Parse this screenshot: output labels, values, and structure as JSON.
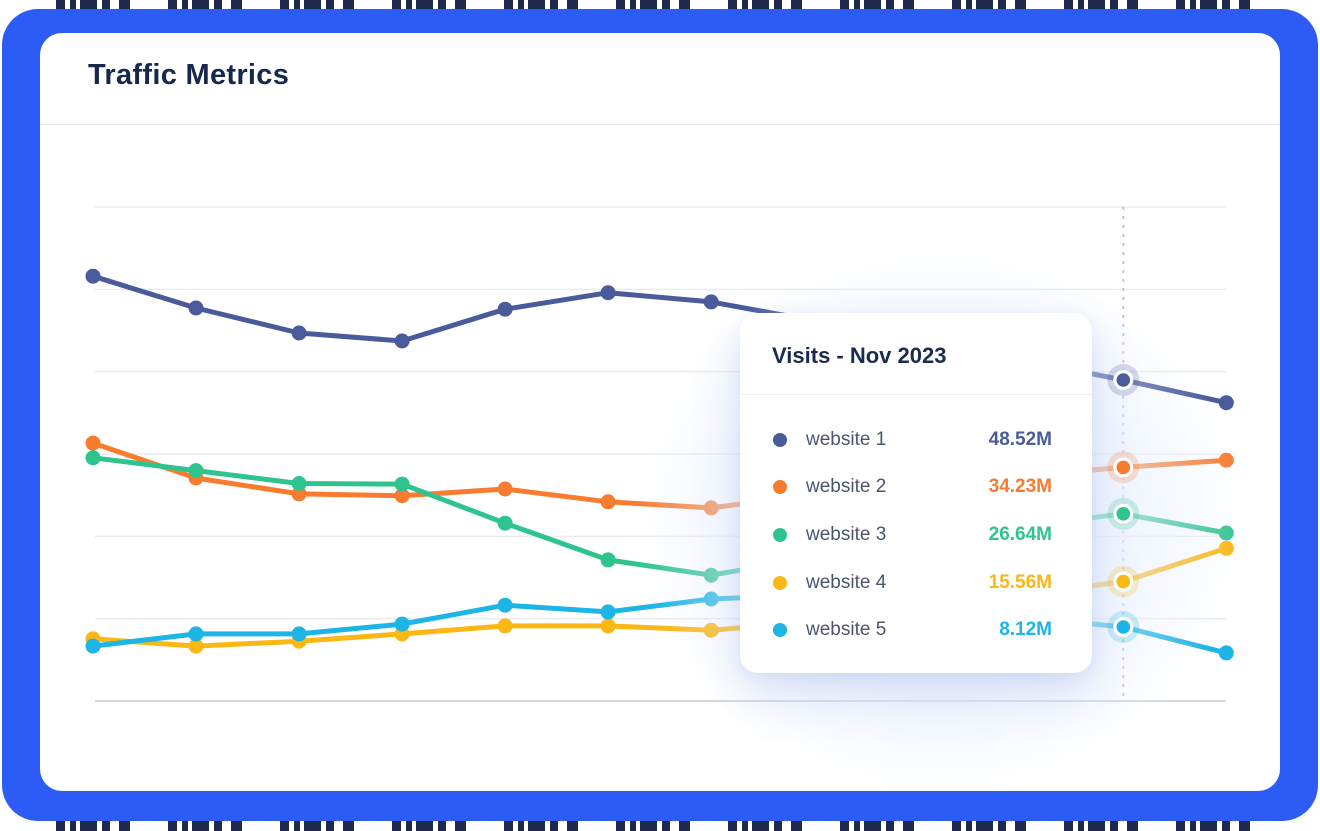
{
  "card": {
    "title": "Traffic Metrics"
  },
  "tooltip": {
    "title": "Visits - Nov 2023",
    "rows": [
      {
        "label": "website 1",
        "value": "48.52M"
      },
      {
        "label": "website 2",
        "value": "34.23M"
      },
      {
        "label": "website 3",
        "value": "26.64M"
      },
      {
        "label": "website 4",
        "value": "15.56M"
      },
      {
        "label": "website 5",
        "value": "8.12M"
      }
    ]
  },
  "chart_data": {
    "type": "line",
    "title": "Traffic Metrics",
    "metric": "Visits",
    "unit": "M",
    "x_count": 12,
    "highlighted_point_index": 10,
    "highlighted_point_label": "Nov 2023",
    "ylim": [
      0,
      80
    ],
    "grid": true,
    "axis_labels_visible": false,
    "legend_position": "tooltip",
    "series": [
      {
        "name": "website 1",
        "color": "#4A5B9B",
        "values": [
          65.5,
          60.3,
          56.2,
          54.9,
          60.1,
          62.8,
          61.3,
          58.2,
          55.0,
          51.8,
          48.52,
          44.8
        ]
      },
      {
        "name": "website 2",
        "color": "#F87C2F",
        "values": [
          38.2,
          32.5,
          29.9,
          29.6,
          30.7,
          28.6,
          27.6,
          29.8,
          31.3,
          32.8,
          34.23,
          35.4
        ]
      },
      {
        "name": "website 3",
        "color": "#2FC48D",
        "values": [
          35.8,
          33.7,
          31.6,
          31.5,
          25.1,
          19.1,
          16.6,
          19.5,
          22.5,
          24.6,
          26.64,
          23.5
        ]
      },
      {
        "name": "website 4",
        "color": "#FBB713",
        "values": [
          6.2,
          5.0,
          5.8,
          7.0,
          8.3,
          8.3,
          7.6,
          9.0,
          11.0,
          13.3,
          15.56,
          21.0
        ]
      },
      {
        "name": "website 5",
        "color": "#1DB5E5",
        "values": [
          5.0,
          7.0,
          7.0,
          8.6,
          11.7,
          10.6,
          12.7,
          13.4,
          11.5,
          9.8,
          8.12,
          3.9
        ]
      }
    ]
  },
  "colors": {
    "frame": "#2C5BF6",
    "card_bg": "#FFFFFF",
    "title_text": "#16294D",
    "gridline": "#E9EBF1",
    "gridline_bottom": "#C7CBD4",
    "crosshair": "#B9C7E2",
    "tooltip_title": "#1B2B4D",
    "tooltip_label": "#4C566B",
    "watermark": "#1E2A4D"
  }
}
